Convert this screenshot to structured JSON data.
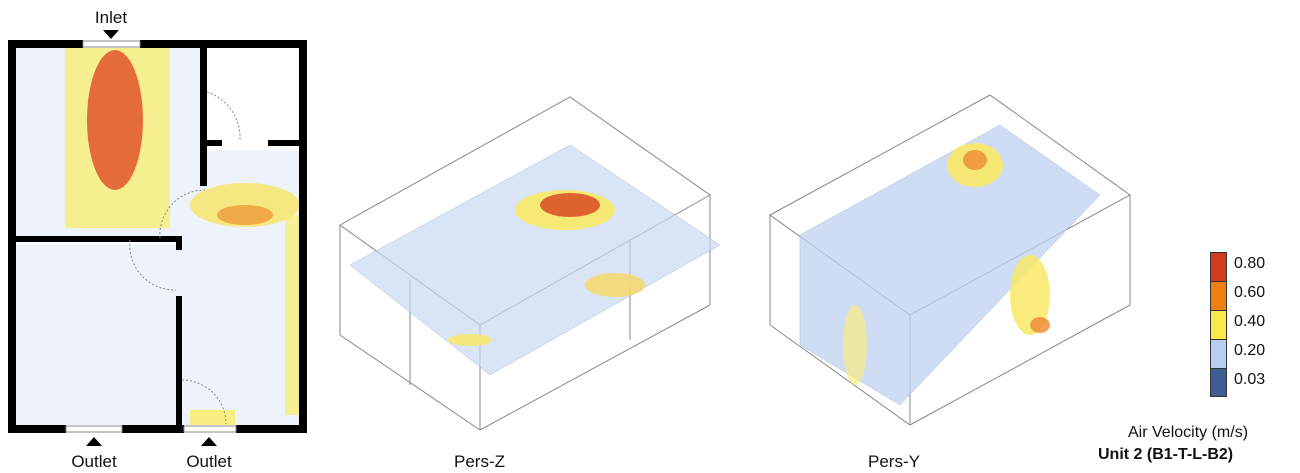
{
  "plan": {
    "inlet_label": "Inlet",
    "outlet_left_label": "Outlet",
    "outlet_right_label": "Outlet"
  },
  "views": [
    {
      "label": "Pers-Z"
    },
    {
      "label": "Pers-Y"
    }
  ],
  "legend": {
    "title": "Air Velocity (m/s)",
    "unit_caption": "Unit 2 (B1-T-L-B2)",
    "entries": [
      {
        "value": "0.80",
        "color": "#d13a1c"
      },
      {
        "value": "0.60",
        "color": "#ee7f10"
      },
      {
        "value": "0.40",
        "color": "#fbe94a"
      },
      {
        "value": "0.20",
        "color": "#b9cdf2"
      },
      {
        "value": "0.03",
        "color": "#3f5d93"
      }
    ]
  }
}
